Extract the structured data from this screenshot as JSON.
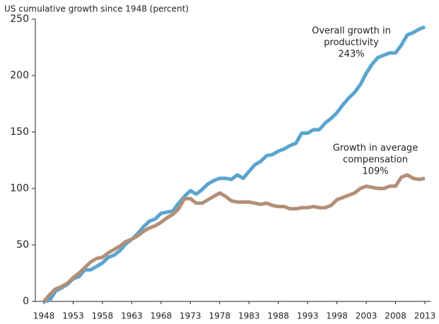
{
  "chart_data": {
    "type": "line",
    "y_axis_label": "US cumulative growth since 1948 (percent)",
    "x": [
      1948,
      1949,
      1950,
      1951,
      1952,
      1953,
      1954,
      1955,
      1956,
      1957,
      1958,
      1959,
      1960,
      1961,
      1962,
      1963,
      1964,
      1965,
      1966,
      1967,
      1968,
      1969,
      1970,
      1971,
      1972,
      1973,
      1974,
      1975,
      1976,
      1977,
      1978,
      1979,
      1980,
      1981,
      1982,
      1983,
      1984,
      1985,
      1986,
      1987,
      1988,
      1989,
      1990,
      1991,
      1992,
      1993,
      1994,
      1995,
      1996,
      1997,
      1998,
      1999,
      2000,
      2001,
      2002,
      2003,
      2004,
      2005,
      2006,
      2007,
      2008,
      2009,
      2010,
      2011,
      2012,
      2013
    ],
    "series": [
      {
        "name": "Productivity",
        "color": "#5aa5cf",
        "values": [
          0,
          1,
          9,
          12,
          15,
          20,
          22,
          28,
          28,
          31,
          34,
          39,
          41,
          45,
          51,
          55,
          60,
          66,
          71,
          73,
          78,
          79,
          80,
          87,
          93,
          98,
          95,
          99,
          104,
          107,
          109,
          109,
          108,
          112,
          109,
          115,
          121,
          124,
          129,
          130,
          133,
          135,
          138,
          140,
          149,
          149,
          152,
          152,
          158,
          162,
          167,
          174,
          180,
          185,
          192,
          202,
          210,
          216,
          218,
          220,
          220,
          227,
          236,
          238,
          241,
          243
        ]
      },
      {
        "name": "Compensation",
        "color": "#b38f77",
        "values": [
          0,
          6,
          11,
          13,
          16,
          21,
          25,
          30,
          35,
          38,
          39,
          43,
          46,
          49,
          53,
          55,
          58,
          62,
          65,
          67,
          70,
          74,
          77,
          82,
          91,
          91,
          87,
          87,
          90,
          93,
          96,
          93,
          89,
          88,
          88,
          88,
          87,
          86,
          87,
          85,
          84,
          84,
          82,
          82,
          83,
          83,
          84,
          83,
          83,
          85,
          90,
          92,
          94,
          96,
          100,
          102,
          101,
          100,
          100,
          102,
          102,
          110,
          112,
          109,
          108,
          109
        ]
      }
    ],
    "annotations": [
      {
        "lines": [
          "Overall growth in",
          "productivity",
          "243%"
        ]
      },
      {
        "lines": [
          "Growth in average",
          "compensation",
          "109%"
        ]
      }
    ],
    "xlim": [
      1948,
      2013
    ],
    "xticks": [
      1948,
      1953,
      1958,
      1963,
      1968,
      1973,
      1978,
      1983,
      1988,
      1993,
      1998,
      2003,
      2008,
      2013
    ],
    "ylim": [
      0,
      250
    ],
    "yticks": [
      0,
      50,
      100,
      150,
      200,
      250
    ],
    "grid": false
  }
}
